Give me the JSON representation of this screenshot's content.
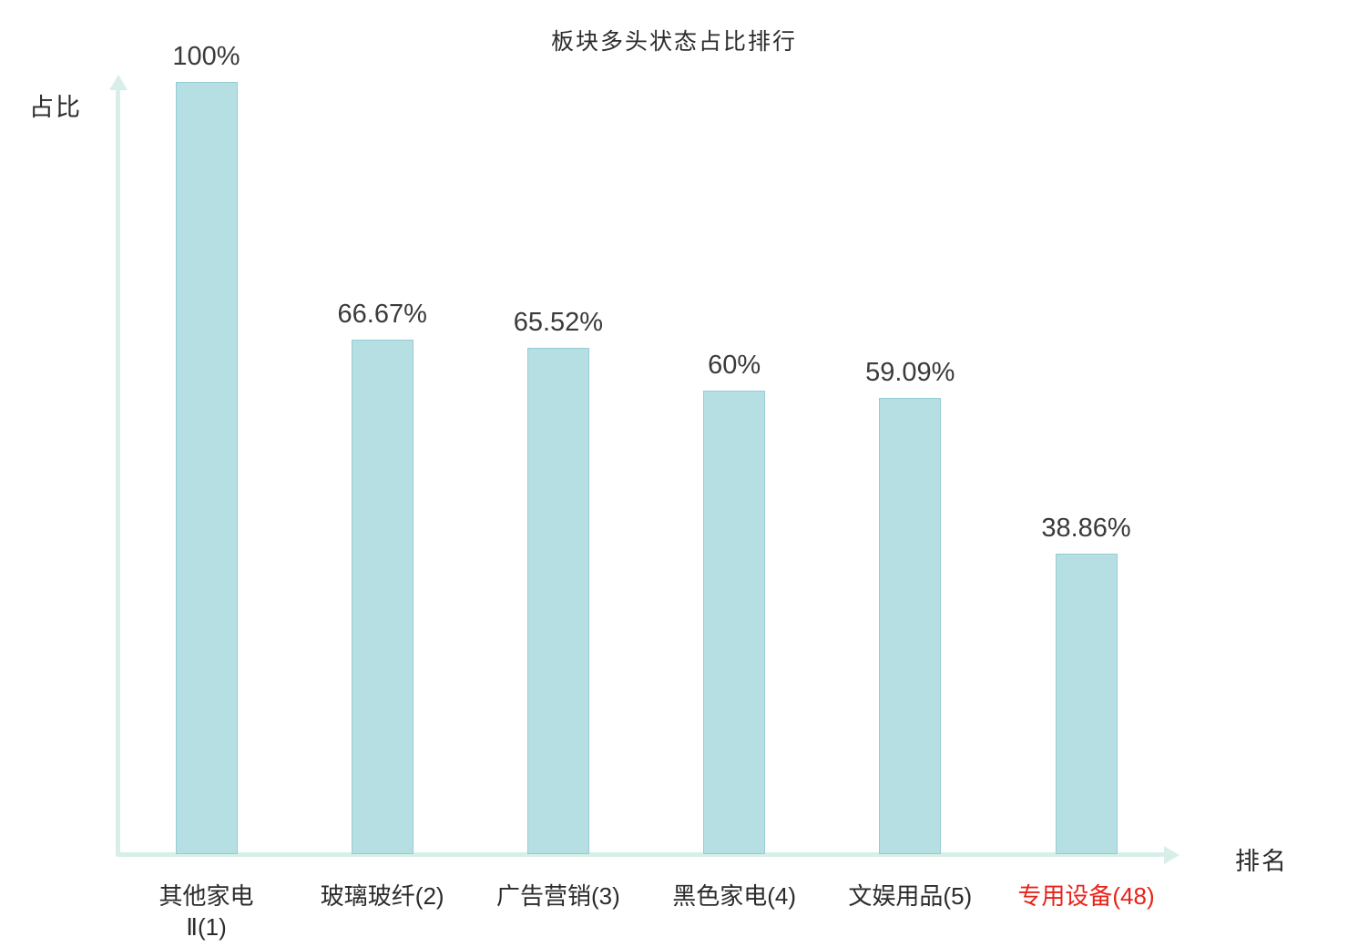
{
  "chart_data": {
    "type": "bar",
    "title": "板块多头状态占比排行",
    "xlabel": "排名",
    "ylabel": "占比",
    "categories": [
      "其他家电\nⅡ(1)",
      "玻璃玻纤(2)",
      "广告营销(3)",
      "黑色家电(4)",
      "文娱用品(5)",
      "专用设备(48)"
    ],
    "values": [
      100,
      66.67,
      65.52,
      60,
      59.09,
      38.86
    ],
    "value_labels": [
      "100%",
      "66.67%",
      "65.52%",
      "60%",
      "59.09%",
      "38.86%"
    ],
    "ylim": [
      0,
      100
    ],
    "grid": false,
    "legend": "none",
    "bar_color": "#b6dfe4",
    "bar_border_color": "#94ccd4",
    "axis_color": "#d8efe9",
    "text_color": "#2b2b2b",
    "highlight_index": 5,
    "highlight_color": "#e8231a"
  }
}
